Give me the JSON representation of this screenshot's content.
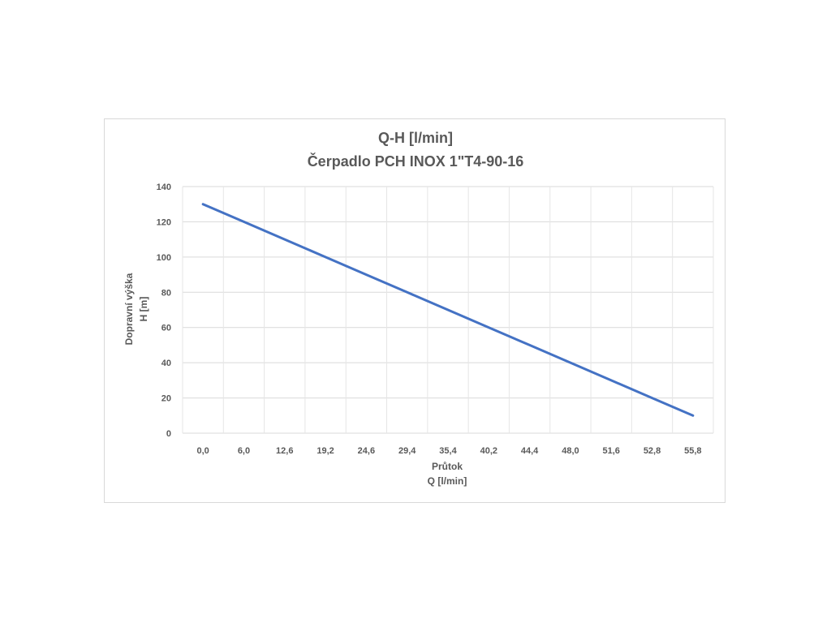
{
  "chart_data": {
    "type": "line",
    "title": [
      "Q-H  [l/min]",
      "Čerpadlo PCH INOX 1\"T4-90-16"
    ],
    "xlabel": [
      "Průtok",
      "Q [l/min]"
    ],
    "ylabel": [
      "Dopravní výška",
      "H [m]"
    ],
    "categories": [
      "0,0",
      "6,0",
      "12,6",
      "19,2",
      "24,6",
      "29,4",
      "35,4",
      "40,2",
      "44,4",
      "48,0",
      "51,6",
      "52,8",
      "55,8"
    ],
    "series": [
      {
        "values": [
          130,
          120,
          110,
          100,
          90,
          80,
          70,
          60,
          50,
          40,
          30,
          20,
          10
        ],
        "color": "#4472c4"
      }
    ],
    "ylim": [
      0,
      140
    ],
    "yticks": [
      0,
      20,
      40,
      60,
      80,
      100,
      120,
      140
    ],
    "grid": true,
    "legend": "none"
  }
}
